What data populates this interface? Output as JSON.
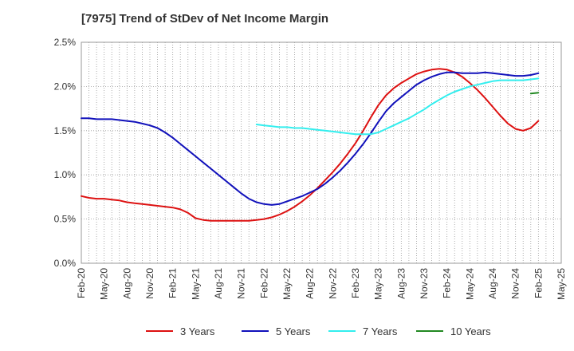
{
  "chart_data": {
    "type": "line",
    "title": "[7975]  Trend of StDev of Net Income Margin",
    "xlabel": "",
    "ylabel": "",
    "ylim": [
      0,
      0.025
    ],
    "grid": true,
    "legend_position": "bottom",
    "x_ticks": [
      "Feb-20",
      "May-20",
      "Aug-20",
      "Nov-20",
      "Feb-21",
      "May-21",
      "Aug-21",
      "Nov-21",
      "Feb-22",
      "May-22",
      "Aug-22",
      "Nov-22",
      "Feb-23",
      "May-23",
      "Aug-23",
      "Nov-23",
      "Feb-24",
      "May-24",
      "Aug-24",
      "Nov-24",
      "Feb-25",
      "May-25"
    ],
    "y_ticks": [
      "0.0%",
      "0.5%",
      "1.0%",
      "1.5%",
      "2.0%",
      "2.5%"
    ],
    "series": [
      {
        "name": "3 Years",
        "color": "#dd1111",
        "points": [
          [
            "2020-02",
            0.0076
          ],
          [
            "2020-03",
            0.0074
          ],
          [
            "2020-04",
            0.0073
          ],
          [
            "2020-05",
            0.0073
          ],
          [
            "2020-06",
            0.0072
          ],
          [
            "2020-07",
            0.0071
          ],
          [
            "2020-08",
            0.0069
          ],
          [
            "2020-09",
            0.0068
          ],
          [
            "2020-10",
            0.0067
          ],
          [
            "2020-11",
            0.0066
          ],
          [
            "2020-12",
            0.0065
          ],
          [
            "2021-01",
            0.0064
          ],
          [
            "2021-02",
            0.0063
          ],
          [
            "2021-03",
            0.0061
          ],
          [
            "2021-04",
            0.0057
          ],
          [
            "2021-05",
            0.0051
          ],
          [
            "2021-06",
            0.0049
          ],
          [
            "2021-07",
            0.0048
          ],
          [
            "2021-08",
            0.0048
          ],
          [
            "2021-09",
            0.0048
          ],
          [
            "2021-10",
            0.0048
          ],
          [
            "2021-11",
            0.0048
          ],
          [
            "2021-12",
            0.0048
          ],
          [
            "2022-01",
            0.0049
          ],
          [
            "2022-02",
            0.005
          ],
          [
            "2022-03",
            0.0052
          ],
          [
            "2022-04",
            0.0055
          ],
          [
            "2022-05",
            0.0059
          ],
          [
            "2022-06",
            0.0064
          ],
          [
            "2022-07",
            0.007
          ],
          [
            "2022-08",
            0.0077
          ],
          [
            "2022-09",
            0.0085
          ],
          [
            "2022-10",
            0.0094
          ],
          [
            "2022-11",
            0.0103
          ],
          [
            "2022-12",
            0.0113
          ],
          [
            "2023-01",
            0.0124
          ],
          [
            "2023-02",
            0.0136
          ],
          [
            "2023-03",
            0.015
          ],
          [
            "2023-04",
            0.0165
          ],
          [
            "2023-05",
            0.0179
          ],
          [
            "2023-06",
            0.019
          ],
          [
            "2023-07",
            0.0198
          ],
          [
            "2023-08",
            0.0204
          ],
          [
            "2023-09",
            0.0209
          ],
          [
            "2023-10",
            0.0214
          ],
          [
            "2023-11",
            0.0217
          ],
          [
            "2023-12",
            0.0219
          ],
          [
            "2024-01",
            0.022
          ],
          [
            "2024-02",
            0.0219
          ],
          [
            "2024-03",
            0.0216
          ],
          [
            "2024-04",
            0.0211
          ],
          [
            "2024-05",
            0.0204
          ],
          [
            "2024-06",
            0.0196
          ],
          [
            "2024-07",
            0.0187
          ],
          [
            "2024-08",
            0.0177
          ],
          [
            "2024-09",
            0.0167
          ],
          [
            "2024-10",
            0.0158
          ],
          [
            "2024-11",
            0.0152
          ],
          [
            "2024-12",
            0.015
          ],
          [
            "2025-01",
            0.0153
          ],
          [
            "2025-02",
            0.0161
          ]
        ]
      },
      {
        "name": "5 Years",
        "color": "#1111bb",
        "points": [
          [
            "2020-02",
            0.0164
          ],
          [
            "2020-03",
            0.0164
          ],
          [
            "2020-04",
            0.0163
          ],
          [
            "2020-05",
            0.0163
          ],
          [
            "2020-06",
            0.0163
          ],
          [
            "2020-07",
            0.0162
          ],
          [
            "2020-08",
            0.0161
          ],
          [
            "2020-09",
            0.016
          ],
          [
            "2020-10",
            0.0158
          ],
          [
            "2020-11",
            0.0156
          ],
          [
            "2020-12",
            0.0153
          ],
          [
            "2021-01",
            0.0148
          ],
          [
            "2021-02",
            0.0142
          ],
          [
            "2021-03",
            0.0135
          ],
          [
            "2021-04",
            0.0128
          ],
          [
            "2021-05",
            0.0121
          ],
          [
            "2021-06",
            0.0114
          ],
          [
            "2021-07",
            0.0107
          ],
          [
            "2021-08",
            0.01
          ],
          [
            "2021-09",
            0.0093
          ],
          [
            "2021-10",
            0.0086
          ],
          [
            "2021-11",
            0.0079
          ],
          [
            "2021-12",
            0.0073
          ],
          [
            "2022-01",
            0.0069
          ],
          [
            "2022-02",
            0.0067
          ],
          [
            "2022-03",
            0.0066
          ],
          [
            "2022-04",
            0.0067
          ],
          [
            "2022-05",
            0.007
          ],
          [
            "2022-06",
            0.0073
          ],
          [
            "2022-07",
            0.0076
          ],
          [
            "2022-08",
            0.008
          ],
          [
            "2022-09",
            0.0084
          ],
          [
            "2022-10",
            0.009
          ],
          [
            "2022-11",
            0.0097
          ],
          [
            "2022-12",
            0.0105
          ],
          [
            "2023-01",
            0.0114
          ],
          [
            "2023-02",
            0.0124
          ],
          [
            "2023-03",
            0.0135
          ],
          [
            "2023-04",
            0.0147
          ],
          [
            "2023-05",
            0.016
          ],
          [
            "2023-06",
            0.0172
          ],
          [
            "2023-07",
            0.0181
          ],
          [
            "2023-08",
            0.0188
          ],
          [
            "2023-09",
            0.0195
          ],
          [
            "2023-10",
            0.0202
          ],
          [
            "2023-11",
            0.0207
          ],
          [
            "2023-12",
            0.0211
          ],
          [
            "2024-01",
            0.0214
          ],
          [
            "2024-02",
            0.0216
          ],
          [
            "2024-03",
            0.0216
          ],
          [
            "2024-04",
            0.0215
          ],
          [
            "2024-05",
            0.0215
          ],
          [
            "2024-06",
            0.0215
          ],
          [
            "2024-07",
            0.0216
          ],
          [
            "2024-08",
            0.0215
          ],
          [
            "2024-09",
            0.0214
          ],
          [
            "2024-10",
            0.0213
          ],
          [
            "2024-11",
            0.0212
          ],
          [
            "2024-12",
            0.0212
          ],
          [
            "2025-01",
            0.0213
          ],
          [
            "2025-02",
            0.0215
          ]
        ]
      },
      {
        "name": "7 Years",
        "color": "#33eeee",
        "points": [
          [
            "2022-01",
            0.0157
          ],
          [
            "2022-02",
            0.0156
          ],
          [
            "2022-03",
            0.0155
          ],
          [
            "2022-04",
            0.0154
          ],
          [
            "2022-05",
            0.0154
          ],
          [
            "2022-06",
            0.0153
          ],
          [
            "2022-07",
            0.0153
          ],
          [
            "2022-08",
            0.0152
          ],
          [
            "2022-09",
            0.0151
          ],
          [
            "2022-10",
            0.015
          ],
          [
            "2022-11",
            0.0149
          ],
          [
            "2022-12",
            0.0148
          ],
          [
            "2023-01",
            0.0147
          ],
          [
            "2023-02",
            0.0146
          ],
          [
            "2023-03",
            0.0146
          ],
          [
            "2023-04",
            0.0146
          ],
          [
            "2023-05",
            0.0148
          ],
          [
            "2023-06",
            0.0152
          ],
          [
            "2023-07",
            0.0156
          ],
          [
            "2023-08",
            0.016
          ],
          [
            "2023-09",
            0.0164
          ],
          [
            "2023-10",
            0.0169
          ],
          [
            "2023-11",
            0.0174
          ],
          [
            "2023-12",
            0.018
          ],
          [
            "2024-01",
            0.0185
          ],
          [
            "2024-02",
            0.019
          ],
          [
            "2024-03",
            0.0194
          ],
          [
            "2024-04",
            0.0197
          ],
          [
            "2024-05",
            0.02
          ],
          [
            "2024-06",
            0.0202
          ],
          [
            "2024-07",
            0.0204
          ],
          [
            "2024-08",
            0.0206
          ],
          [
            "2024-09",
            0.0207
          ],
          [
            "2024-10",
            0.0207
          ],
          [
            "2024-11",
            0.0207
          ],
          [
            "2024-12",
            0.0207
          ],
          [
            "2025-01",
            0.0208
          ],
          [
            "2025-02",
            0.0209
          ]
        ]
      },
      {
        "name": "10 Years",
        "color": "#228822",
        "points": [
          [
            "2025-01",
            0.0192
          ],
          [
            "2025-02",
            0.0193
          ]
        ]
      }
    ]
  }
}
